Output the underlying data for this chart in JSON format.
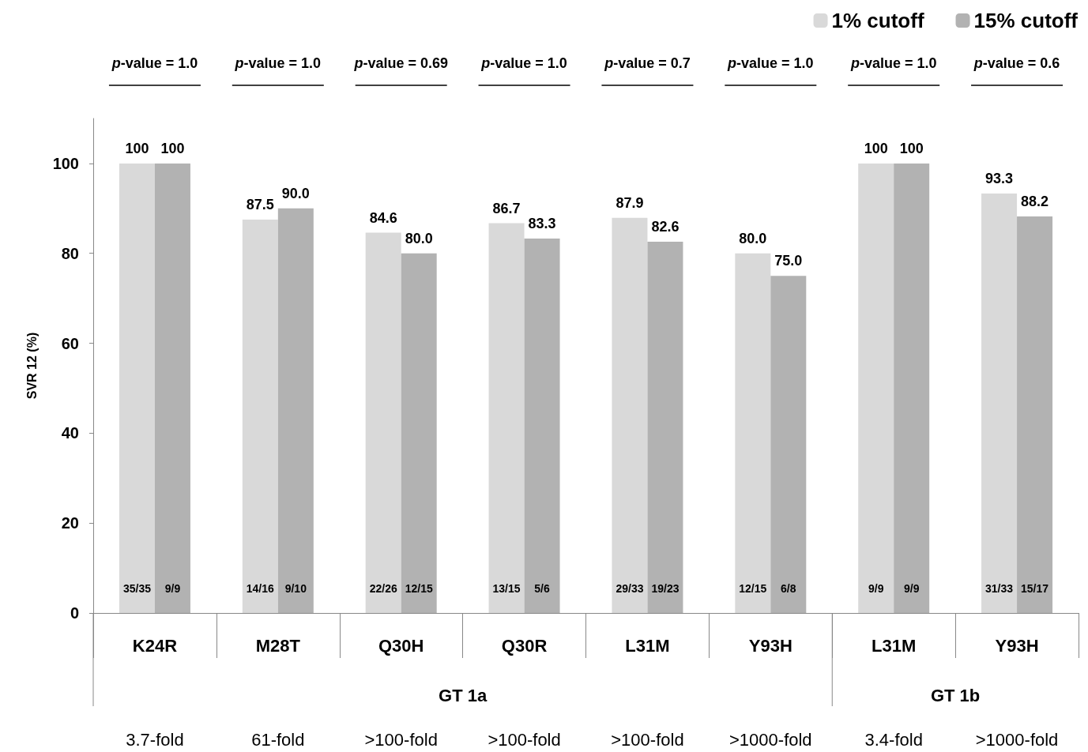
{
  "chart_data": {
    "type": "bar",
    "ylabel": "SVR 12 (%)",
    "categories": [
      "K24R",
      "M28T",
      "Q30H",
      "Q30R",
      "L31M",
      "Y93H",
      "L31M",
      "Y93H"
    ],
    "series": [
      {
        "name": "1% cutoff",
        "color": "#d9d9d9",
        "values": [
          100,
          87.5,
          84.6,
          86.7,
          87.9,
          80.0,
          100,
          93.3
        ],
        "value_labels": [
          "100",
          "87.5",
          "84.6",
          "86.7",
          "87.9",
          "80.0",
          "100",
          "93.3"
        ]
      },
      {
        "name": "15% cutoff",
        "color": "#b2b2b2",
        "values": [
          100,
          90.0,
          80.0,
          83.3,
          82.6,
          75.0,
          100,
          88.2
        ],
        "value_labels": [
          "100",
          "90.0",
          "80.0",
          "83.3",
          "82.6",
          "75.0",
          "100",
          "88.2"
        ]
      }
    ],
    "ylim": [
      0,
      110
    ],
    "yticks": [
      0,
      20,
      40,
      60,
      80,
      100
    ],
    "grid": false,
    "legend": "top right",
    "annotations": [
      "p-value = 1.0",
      "p-value = 1.0",
      "p-value = 0.69",
      "p-value = 1.0",
      "p-value = 0.7",
      "p-value = 1.0",
      "p-value = 1.0",
      "p-value = 0.6",
      "35/35",
      "9/9",
      "14/16",
      "9/10",
      "22/26",
      "12/15",
      "13/15",
      "5/6",
      "29/33",
      "19/23",
      "12/15",
      "6/8",
      "9/9",
      "9/9",
      "31/33",
      "15/17",
      "GT 1a",
      "GT 1b",
      "3.7-fold",
      "61-fold",
      ">100-fold",
      ">100-fold",
      ">100-fold",
      ">1000-fold",
      "3.4-fold",
      ">1000-fold"
    ]
  }
}
